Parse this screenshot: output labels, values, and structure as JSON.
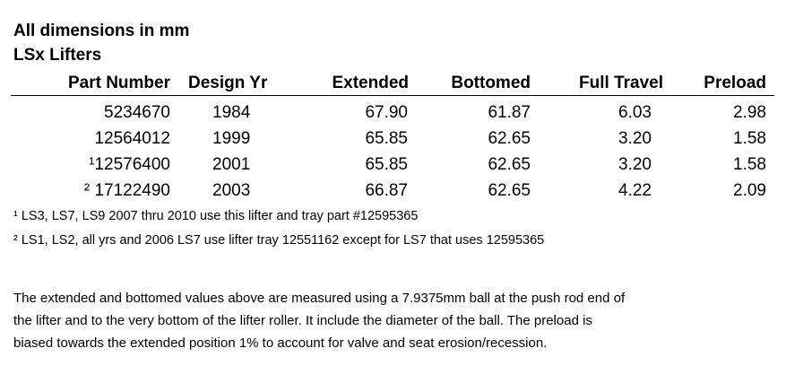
{
  "header": {
    "title": "All dimensions in mm",
    "subtitle": "LSx Lifters"
  },
  "table": {
    "columns": [
      "Part Number",
      "Design Yr",
      "Extended",
      "Bottomed",
      "Full Travel",
      "Preload"
    ],
    "rows": [
      [
        "5234670",
        "1984",
        "67.90",
        "61.87",
        "6.03",
        "2.98"
      ],
      [
        "12564012",
        "1999",
        "65.85",
        "62.65",
        "3.20",
        "1.58"
      ],
      [
        "¹12576400",
        "2001",
        "65.85",
        "62.65",
        "3.20",
        "1.58"
      ],
      [
        "² 17122490",
        "2003",
        "66.87",
        "62.65",
        "4.22",
        "2.09"
      ]
    ]
  },
  "footnotes": [
    "¹ LS3, LS7, LS9 2007 thru 2010 use this lifter and tray part #12595365",
    "² LS1, LS2, all yrs and 2006 LS7 use lifter tray 12551162 except for LS7 that uses 12595365"
  ],
  "note": [
    "The extended and bottomed values above are measured using a 7.9375mm ball at the push rod end of",
    "the lifter and to the very bottom of the lifter roller. It include the diameter of the ball.  The preload is",
    "biased towards the extended position 1% to account for valve and seat erosion/recession."
  ]
}
